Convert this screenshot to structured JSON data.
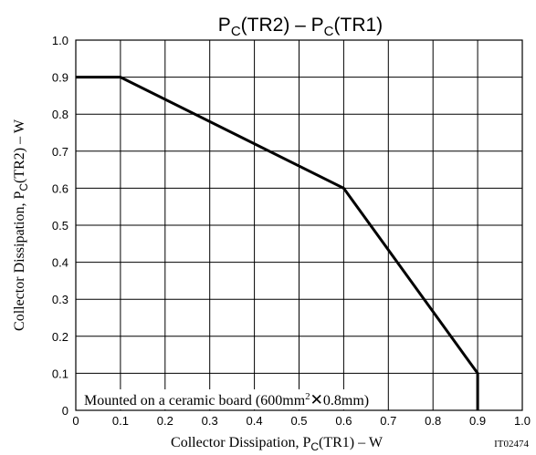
{
  "chart_data": {
    "type": "line",
    "title": {
      "p1": "P",
      "s1": "C",
      "r1": "(TR2)  –  P",
      "s2": "C",
      "r2": "(TR1)"
    },
    "xlabel": {
      "main": "Collector Dissipation, P",
      "sub": "C",
      "rest": "(TR1)  –  W"
    },
    "ylabel": {
      "main": "Collector Dissipation, P",
      "sub": "C",
      "rest": "(TR2)  –  W"
    },
    "annotation": {
      "pre": "Mounted on a ceramic board (600mm",
      "sup": "2",
      "post": "0.8mm)"
    },
    "code": "IT02474",
    "xlim": [
      0,
      1.0
    ],
    "ylim": [
      0,
      1.0
    ],
    "xticks": [
      "0",
      "0.1",
      "0.2",
      "0.3",
      "0.4",
      "0.5",
      "0.6",
      "0.7",
      "0.8",
      "0.9",
      "1.0"
    ],
    "yticks": [
      "0",
      "0.1",
      "0.2",
      "0.3",
      "0.4",
      "0.5",
      "0.6",
      "0.7",
      "0.8",
      "0.9",
      "1.0"
    ],
    "grid": true,
    "series": [
      {
        "x": [
          0,
          0.1,
          0.6,
          0.9,
          0.9
        ],
        "y": [
          0.9,
          0.9,
          0.6,
          0.1,
          0
        ]
      }
    ]
  }
}
